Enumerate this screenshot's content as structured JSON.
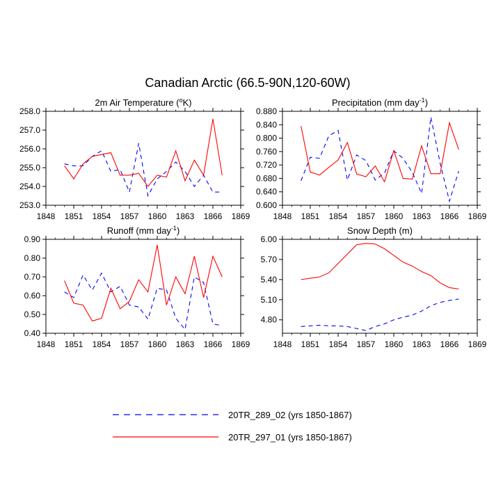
{
  "figure_title": "Canadian Arctic (66.5-90N,120-60W)",
  "colors": {
    "series_a": "#0000ff",
    "series_b": "#ff0000",
    "axis": "#000000"
  },
  "legend": [
    {
      "name": "20TR_289_02 (yrs 1850-1867)",
      "style": "dashed",
      "color": "#0000ff"
    },
    {
      "name": "20TR_297_01 (yrs 1850-1867)",
      "style": "solid",
      "color": "#ff0000"
    }
  ],
  "chart_data": [
    {
      "type": "line",
      "title": "2m Air Temperature (",
      "title_super": "o",
      "title_suffix": "K)",
      "xlim": [
        1848,
        1869
      ],
      "ylim": [
        253.0,
        258.0
      ],
      "x_ticks": [
        "1848",
        "1851",
        "1854",
        "1857",
        "1860",
        "1863",
        "1866",
        "1869"
      ],
      "y_ticks": [
        "253.0",
        "254.0",
        "255.0",
        "256.0",
        "257.0",
        "258.0"
      ],
      "x": [
        1850,
        1851,
        1852,
        1853,
        1854,
        1855,
        1856,
        1857,
        1858,
        1859,
        1860,
        1861,
        1862,
        1863,
        1864,
        1865,
        1866,
        1867
      ],
      "series": [
        {
          "name": "20TR_289_02 (yrs 1850-1867)",
          "values": [
            255.2,
            255.1,
            255.1,
            255.6,
            255.9,
            254.8,
            254.9,
            253.7,
            256.3,
            253.5,
            254.4,
            254.8,
            255.3,
            254.8,
            254.0,
            254.6,
            253.7,
            253.7
          ]
        },
        {
          "name": "20TR_297_01 (yrs 1850-1867)",
          "values": [
            255.1,
            254.4,
            255.2,
            255.6,
            255.7,
            255.8,
            254.6,
            254.6,
            254.7,
            254.0,
            254.6,
            254.5,
            255.9,
            254.3,
            255.4,
            254.6,
            257.6,
            254.6
          ]
        }
      ]
    },
    {
      "type": "line",
      "title": "Precipitation (mm day",
      "title_super": "-1",
      "title_suffix": ")",
      "xlim": [
        1848,
        1869
      ],
      "ylim": [
        0.6,
        0.88
      ],
      "x_ticks": [
        "1848",
        "1851",
        "1854",
        "1857",
        "1860",
        "1863",
        "1866",
        "1869"
      ],
      "y_ticks": [
        "0.600",
        "0.640",
        "0.680",
        "0.720",
        "0.760",
        "0.800",
        "0.840",
        "0.880"
      ],
      "x": [
        1850,
        1851,
        1852,
        1853,
        1854,
        1855,
        1856,
        1857,
        1858,
        1859,
        1860,
        1861,
        1862,
        1863,
        1864,
        1865,
        1866,
        1867
      ],
      "series": [
        {
          "name": "20TR_289_02 (yrs 1850-1867)",
          "values": [
            0.673,
            0.743,
            0.74,
            0.807,
            0.823,
            0.675,
            0.75,
            0.733,
            0.675,
            0.696,
            0.762,
            0.74,
            0.698,
            0.635,
            0.863,
            0.725,
            0.612,
            0.702
          ]
        },
        {
          "name": "20TR_297_01 (yrs 1850-1867)",
          "values": [
            0.836,
            0.699,
            0.69,
            0.713,
            0.735,
            0.787,
            0.693,
            0.685,
            0.717,
            0.67,
            0.763,
            0.68,
            0.678,
            0.777,
            0.694,
            0.694,
            0.846,
            0.766
          ]
        }
      ]
    },
    {
      "type": "line",
      "title": "Runoff (mm day",
      "title_super": "-1",
      "title_suffix": ")",
      "xlim": [
        1848,
        1869
      ],
      "ylim": [
        0.4,
        0.9
      ],
      "x_ticks": [
        "1848",
        "1851",
        "1854",
        "1857",
        "1860",
        "1863",
        "1866",
        "1869"
      ],
      "y_ticks": [
        "0.40",
        "0.50",
        "0.60",
        "0.70",
        "0.80",
        "0.90"
      ],
      "x": [
        1850,
        1851,
        1852,
        1853,
        1854,
        1855,
        1856,
        1857,
        1858,
        1859,
        1860,
        1861,
        1862,
        1863,
        1864,
        1865,
        1866,
        1867
      ],
      "series": [
        {
          "name": "20TR_289_02 (yrs 1850-1867)",
          "values": [
            0.62,
            0.59,
            0.71,
            0.63,
            0.72,
            0.62,
            0.65,
            0.55,
            0.54,
            0.475,
            0.64,
            0.63,
            0.48,
            0.42,
            0.7,
            0.67,
            0.45,
            0.44
          ]
        },
        {
          "name": "20TR_297_01 (yrs 1850-1867)",
          "values": [
            0.68,
            0.56,
            0.55,
            0.465,
            0.48,
            0.64,
            0.53,
            0.57,
            0.685,
            0.62,
            0.87,
            0.55,
            0.7,
            0.61,
            0.81,
            0.59,
            0.81,
            0.7
          ]
        }
      ]
    },
    {
      "type": "line",
      "title": "Snow Depth (m)",
      "title_super": "",
      "title_suffix": "",
      "xlim": [
        1848,
        1869
      ],
      "ylim": [
        4.6,
        6.0
      ],
      "x_ticks": [
        "1848",
        "1851",
        "1854",
        "1857",
        "1860",
        "1863",
        "1866",
        "1869"
      ],
      "y_ticks": [
        "4.80",
        "5.10",
        "5.40",
        "5.70",
        "6.00"
      ],
      "x": [
        1850,
        1851,
        1852,
        1853,
        1854,
        1855,
        1856,
        1857,
        1858,
        1859,
        1860,
        1861,
        1862,
        1863,
        1864,
        1865,
        1866,
        1867
      ],
      "series": [
        {
          "name": "20TR_289_02 (yrs 1850-1867)",
          "values": [
            4.7,
            4.71,
            4.72,
            4.71,
            4.71,
            4.7,
            4.67,
            4.64,
            4.7,
            4.74,
            4.8,
            4.84,
            4.87,
            4.93,
            5.01,
            5.06,
            5.09,
            5.11
          ]
        },
        {
          "name": "20TR_297_01 (yrs 1850-1867)",
          "values": [
            5.4,
            5.42,
            5.44,
            5.5,
            5.64,
            5.78,
            5.92,
            5.94,
            5.93,
            5.86,
            5.76,
            5.66,
            5.6,
            5.52,
            5.46,
            5.35,
            5.28,
            5.26
          ]
        }
      ]
    }
  ]
}
